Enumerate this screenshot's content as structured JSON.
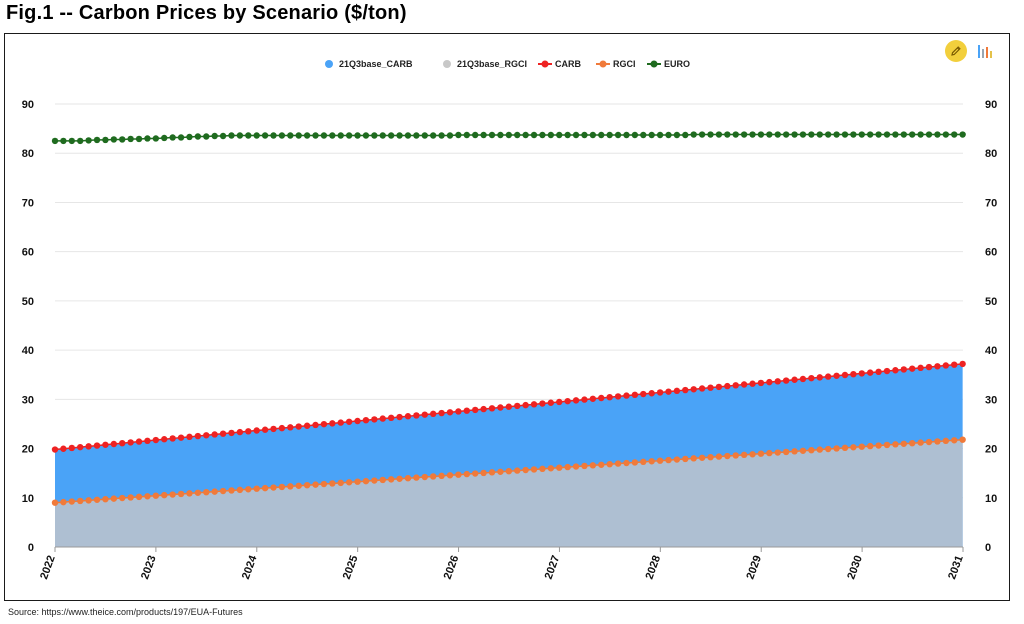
{
  "header": {
    "title": "Fig.1 -- Carbon Prices by Scenario ($/ton)"
  },
  "footer": {
    "source": "Source: https://www.theice.com/products/197/EUA-Futures"
  },
  "toolbar": {
    "edit_icon": "pencil-icon",
    "chart_type_icon": "bar-chart-icon"
  },
  "chart_data": {
    "type": "area",
    "title": "",
    "xlabel": "",
    "ylabel": "",
    "x_ticks": [
      "2022",
      "2023",
      "2024",
      "2025",
      "2026",
      "2027",
      "2028",
      "2029",
      "2030",
      "2031"
    ],
    "y_ticks": [
      "0",
      "10",
      "20",
      "30",
      "40",
      "50",
      "60",
      "70",
      "80",
      "90"
    ],
    "xlim": [
      2022,
      2031
    ],
    "ylim": [
      0,
      90
    ],
    "grid": true,
    "dual_y_axis": true,
    "legend_position": "top-center",
    "series": [
      {
        "name": "21Q3base_CARB",
        "type": "area",
        "color": "#4aa3f7",
        "start": 2022.0,
        "step_years": 0.0833,
        "start_value": 19.8,
        "end_value": 37.2
      },
      {
        "name": "21Q3base_RGCI",
        "type": "area",
        "color": "#aebfd2",
        "legend_color": "#c8c8c8",
        "start": 2022.0,
        "step_years": 0.0833,
        "start_value": 9.0,
        "end_value": 21.8
      },
      {
        "name": "CARB",
        "type": "line-markers",
        "color": "#ee2222",
        "start": 2022.0,
        "step_years": 0.0833,
        "start_value": 19.8,
        "end_value": 37.2
      },
      {
        "name": "RGCI",
        "type": "line-markers",
        "color": "#f07a3a",
        "start": 2022.0,
        "step_years": 0.0833,
        "start_value": 9.0,
        "end_value": 21.8
      },
      {
        "name": "EURO",
        "type": "line-markers",
        "color": "#1f6b1f",
        "start": 2022.0,
        "step_years": 0.0833,
        "values": [
          82.5,
          82.5,
          82.5,
          82.5,
          82.6,
          82.7,
          82.7,
          82.8,
          82.8,
          82.9,
          82.9,
          83.0,
          83.0,
          83.1,
          83.2,
          83.2,
          83.3,
          83.4,
          83.4,
          83.5,
          83.5,
          83.6,
          83.6,
          83.6,
          83.6,
          83.6,
          83.6,
          83.6,
          83.6,
          83.6,
          83.6,
          83.6,
          83.6,
          83.6,
          83.6,
          83.6,
          83.6,
          83.6,
          83.6,
          83.6,
          83.6,
          83.6,
          83.6,
          83.6,
          83.6,
          83.6,
          83.6,
          83.6,
          83.7,
          83.7,
          83.7,
          83.7,
          83.7,
          83.7,
          83.7,
          83.7,
          83.7,
          83.7,
          83.7,
          83.7,
          83.7,
          83.7,
          83.7,
          83.7,
          83.7,
          83.7,
          83.7,
          83.7,
          83.7,
          83.7,
          83.7,
          83.7,
          83.7,
          83.7,
          83.7,
          83.7,
          83.8,
          83.8,
          83.8,
          83.8,
          83.8,
          83.8,
          83.8,
          83.8,
          83.8,
          83.8,
          83.8,
          83.8,
          83.8,
          83.8,
          83.8,
          83.8,
          83.8,
          83.8,
          83.8,
          83.8,
          83.8,
          83.8,
          83.8,
          83.8,
          83.8,
          83.8,
          83.8,
          83.8,
          83.8,
          83.8,
          83.8,
          83.8,
          83.8
        ]
      }
    ]
  }
}
